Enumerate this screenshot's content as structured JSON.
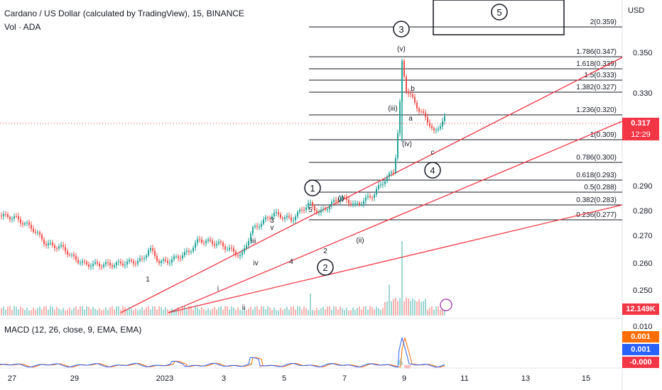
{
  "header": {
    "title": "Cardano / US Dollar (calculated by TradingView), 15, BINANCE",
    "volume_label": "Vol · ADA",
    "macd_label": "MACD (12, 26, close, 9, EMA, EMA)"
  },
  "chart_data": {
    "type": "candlestick",
    "currency": "USD",
    "y_ticks": [
      "0.350",
      "0.330",
      "0.290",
      "0.280",
      "0.270",
      "0.260",
      "0.250"
    ],
    "x_ticks": [
      "27",
      "29",
      "2023",
      "3",
      "5",
      "7",
      "9",
      "11",
      "13",
      "15"
    ],
    "last_price": "0.317",
    "countdown": "12:29",
    "volume_value": "12.149K",
    "macd_ticks": [
      "0.010",
      "0.000"
    ],
    "macd_values": [
      "0.001",
      "0.001",
      "-0.000"
    ],
    "fib_levels": [
      {
        "label": "2(0.359)"
      },
      {
        "label": "1.786(0.347)"
      },
      {
        "label": "1.618(0.339)"
      },
      {
        "label": "1.5(0.333)"
      },
      {
        "label": "1.382(0.327)"
      },
      {
        "label": "1.236(0.320)"
      },
      {
        "label": "1(0.309)"
      },
      {
        "label": "0.786(0.300)"
      },
      {
        "label": "0.618(0.293)"
      },
      {
        "label": "0.5(0.288)"
      },
      {
        "label": "0.382(0.283)"
      },
      {
        "label": "0.236(0.277)"
      }
    ],
    "wave_labels_circled": [
      "1",
      "2",
      "3",
      "4",
      "5"
    ],
    "wave_labels": [
      "(v)",
      "(iii)",
      "(iv)",
      "(i)",
      "(ii)",
      "a",
      "b",
      "c",
      "1",
      "2",
      "3",
      "4",
      "5",
      "i",
      "ii",
      "iii",
      "iv",
      "v"
    ],
    "colors": {
      "up": "#26a69a",
      "down": "#ef5350",
      "price_badge": "#f23645",
      "fib": "#131722",
      "trend": "#f23645"
    }
  }
}
